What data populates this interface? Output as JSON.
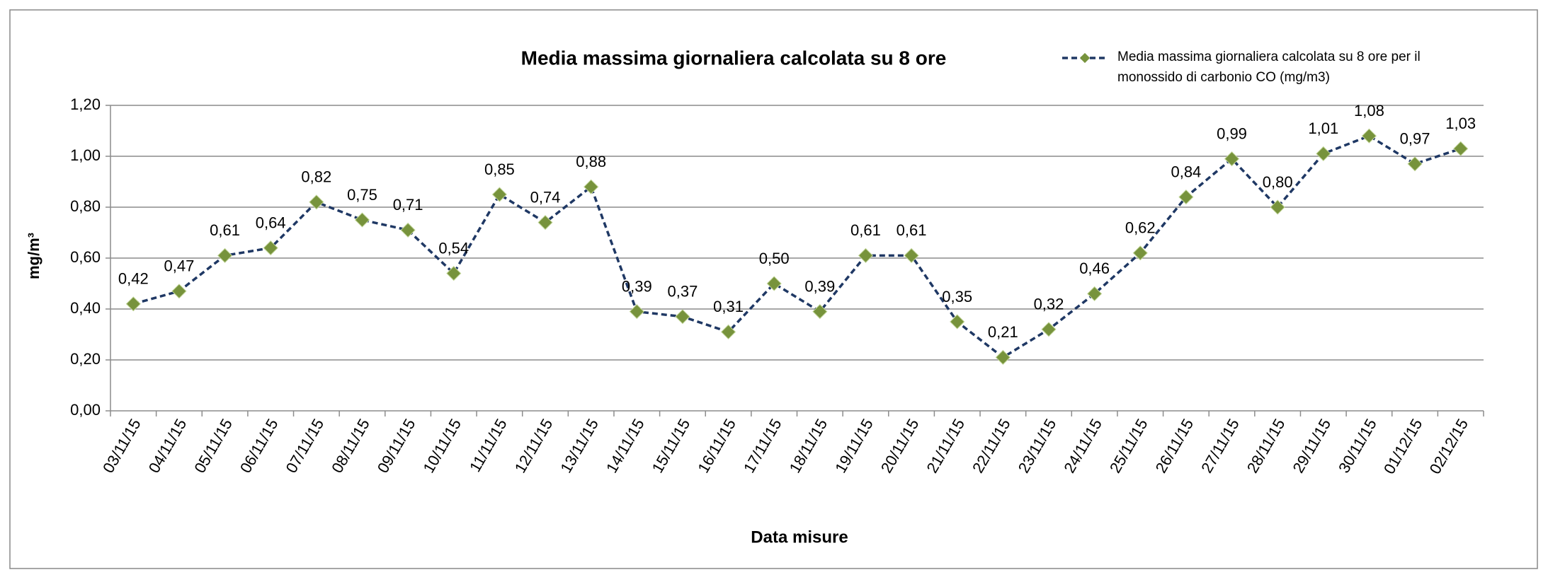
{
  "chart_data": {
    "type": "line",
    "title": "Media massima giornaliera calcolata su 8 ore",
    "x_label": "Data misure",
    "y_label": "mg/m³",
    "categories": [
      "03/11/15",
      "04/11/15",
      "05/11/15",
      "06/11/15",
      "07/11/15",
      "08/11/15",
      "09/11/15",
      "10/11/15",
      "11/11/15",
      "12/11/15",
      "13/11/15",
      "14/11/15",
      "15/11/15",
      "16/11/15",
      "17/11/15",
      "18/11/15",
      "19/11/15",
      "20/11/15",
      "21/11/15",
      "22/11/15",
      "23/11/15",
      "24/11/15",
      "25/11/15",
      "26/11/15",
      "27/11/15",
      "28/11/15",
      "29/11/15",
      "30/11/15",
      "01/12/15",
      "02/12/15"
    ],
    "series": [
      {
        "name": "Media massima giornaliera calcolata su 8 ore per il monossido di carbonio CO (mg/m3)",
        "color": "#1f3864",
        "marker_color": "#77933c",
        "values": [
          0.42,
          0.47,
          0.61,
          0.64,
          0.82,
          0.75,
          0.71,
          0.54,
          0.85,
          0.74,
          0.88,
          0.39,
          0.37,
          0.31,
          0.5,
          0.39,
          0.61,
          0.61,
          0.35,
          0.21,
          0.32,
          0.46,
          0.62,
          0.84,
          0.99,
          0.8,
          1.01,
          1.08,
          0.97,
          1.03
        ],
        "value_labels": [
          "0,42",
          "0,47",
          "0,61",
          "0,64",
          "0,82",
          "0,75",
          "0,71",
          "0,54",
          "0,85",
          "0,74",
          "0,88",
          "0,39",
          "0,37",
          "0,31",
          "0,50",
          "0,39",
          "0,61",
          "0,61",
          "0,35",
          "0,21",
          "0,32",
          "0,46",
          "0,62",
          "0,84",
          "0,99",
          "0,80",
          "1,01",
          "1,08",
          "0,97",
          "1,03"
        ]
      }
    ],
    "ylim": [
      0,
      1.2
    ],
    "yticks": [
      {
        "value": 0,
        "label": "0,00"
      },
      {
        "value": 0.2,
        "label": "0,20"
      },
      {
        "value": 0.4,
        "label": "0,40"
      },
      {
        "value": 0.6,
        "label": "0,60"
      },
      {
        "value": 0.8,
        "label": "0,80"
      },
      {
        "value": 1.0,
        "label": "1,00"
      },
      {
        "value": 1.2,
        "label": "1,20"
      }
    ],
    "grid": true,
    "legend": "top-right"
  }
}
